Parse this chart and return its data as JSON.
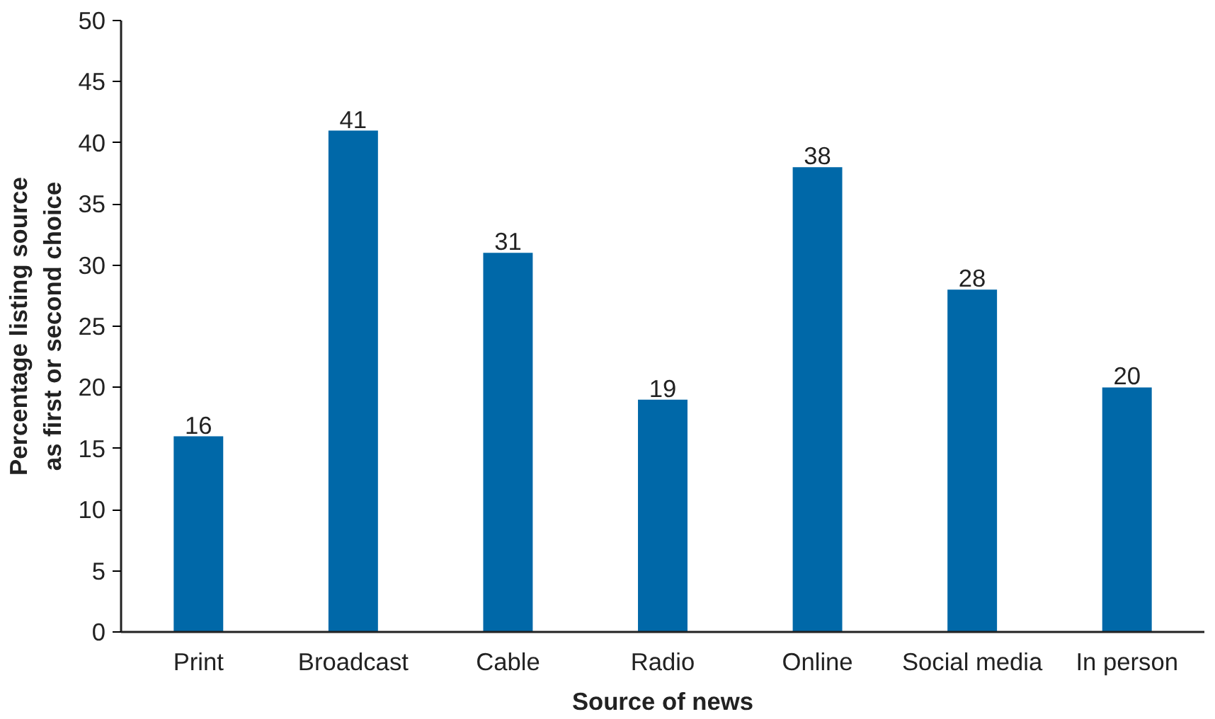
{
  "chart_data": {
    "type": "bar",
    "xlabel": "Source of news",
    "ylabel": "Percentage listing source\nas first or second choice",
    "categories": [
      "Print",
      "Broadcast",
      "Cable",
      "Radio",
      "Online",
      "Social media",
      "In person"
    ],
    "values": [
      16,
      41,
      31,
      19,
      38,
      28,
      20
    ],
    "color": "#0068a8",
    "ylim": [
      0,
      50
    ],
    "yticks": [
      0,
      5,
      10,
      15,
      20,
      25,
      30,
      35,
      40,
      45,
      50
    ],
    "grid": false,
    "data_labels": true
  }
}
